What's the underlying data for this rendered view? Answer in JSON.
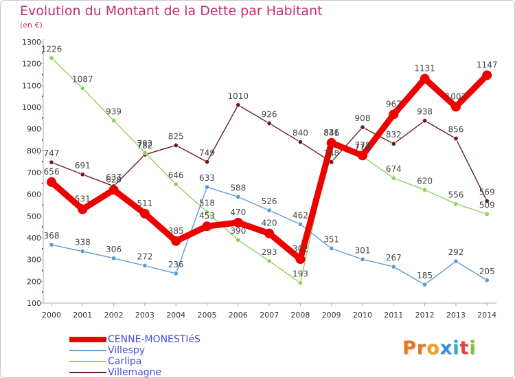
{
  "title": "Evolution du Montant de la Dette par Habitant",
  "subtitle": "(en €)",
  "chart_data": {
    "type": "line",
    "x": [
      "2000",
      "2001",
      "2002",
      "2003",
      "2004",
      "2005",
      "2006",
      "2007",
      "2008",
      "2009",
      "2010",
      "2011",
      "2012",
      "2013",
      "2014"
    ],
    "ylim": [
      100,
      1300
    ],
    "yticks": [
      100,
      200,
      300,
      400,
      500,
      600,
      700,
      800,
      900,
      1000,
      1100,
      1200,
      1300
    ],
    "grid": false,
    "legend_position": "bottom-left",
    "series": [
      {
        "name": "Villemagne",
        "color": "#6b1a1a",
        "width": "thin",
        "values": [
          747,
          691,
          637,
          782,
          825,
          749,
          1010,
          926,
          840,
          748,
          908,
          832,
          938,
          856,
          569
        ],
        "labels": [
          "747",
          "691",
          "637",
          "782",
          "825",
          "749",
          "1010",
          "926",
          "840",
          "748",
          "908",
          "832",
          "938",
          "856",
          "569"
        ]
      },
      {
        "name": "Carlipa",
        "color": "#8ed05a",
        "width": "thin",
        "values": [
          1226,
          1087,
          939,
          792,
          646,
          518,
          390,
          293,
          193,
          841,
          774,
          674,
          620,
          556,
          509
        ],
        "labels": [
          "1226",
          "1087",
          "939",
          "792",
          "646",
          "518",
          "390",
          "293",
          "193",
          "841",
          "774",
          "674",
          "620",
          "556",
          "509"
        ]
      },
      {
        "name": "Villespy",
        "color": "#5b9bd5",
        "width": "thin",
        "values": [
          368,
          338,
          306,
          272,
          236,
          633,
          588,
          526,
          462,
          351,
          301,
          267,
          185,
          292,
          205
        ],
        "labels": [
          "368",
          "338",
          "306",
          "272",
          "236",
          "633",
          "588",
          "526",
          "462",
          "351",
          "301",
          "267",
          "185",
          "292",
          "205"
        ]
      },
      {
        "name": "CENNE-MONESTIéS",
        "color": "#ee0000",
        "width": "thick",
        "values": [
          656,
          531,
          620,
          511,
          385,
          453,
          470,
          420,
          302,
          836,
          778,
          967,
          1131,
          1002,
          1147
        ],
        "labels": [
          "656",
          "531",
          "620",
          "511",
          "385",
          "453",
          "470",
          "420",
          "302",
          "836",
          "778",
          "967",
          "1131",
          "1002",
          "1147"
        ]
      }
    ]
  },
  "legend": [
    {
      "name": "CENNE-MONESTIéS",
      "color": "#ee0000"
    },
    {
      "name": "Villespy",
      "color": "#5b9bd5"
    },
    {
      "name": "Carlipa",
      "color": "#8ed05a"
    },
    {
      "name": "Villemagne",
      "color": "#6b1a1a"
    }
  ],
  "logo": {
    "text": "Proxiti",
    "colors": [
      "#e87820",
      "#e87820",
      "#f0a020",
      "#3a8fe0",
      "#2ab0c0",
      "#e84040",
      "#8ac030"
    ]
  }
}
